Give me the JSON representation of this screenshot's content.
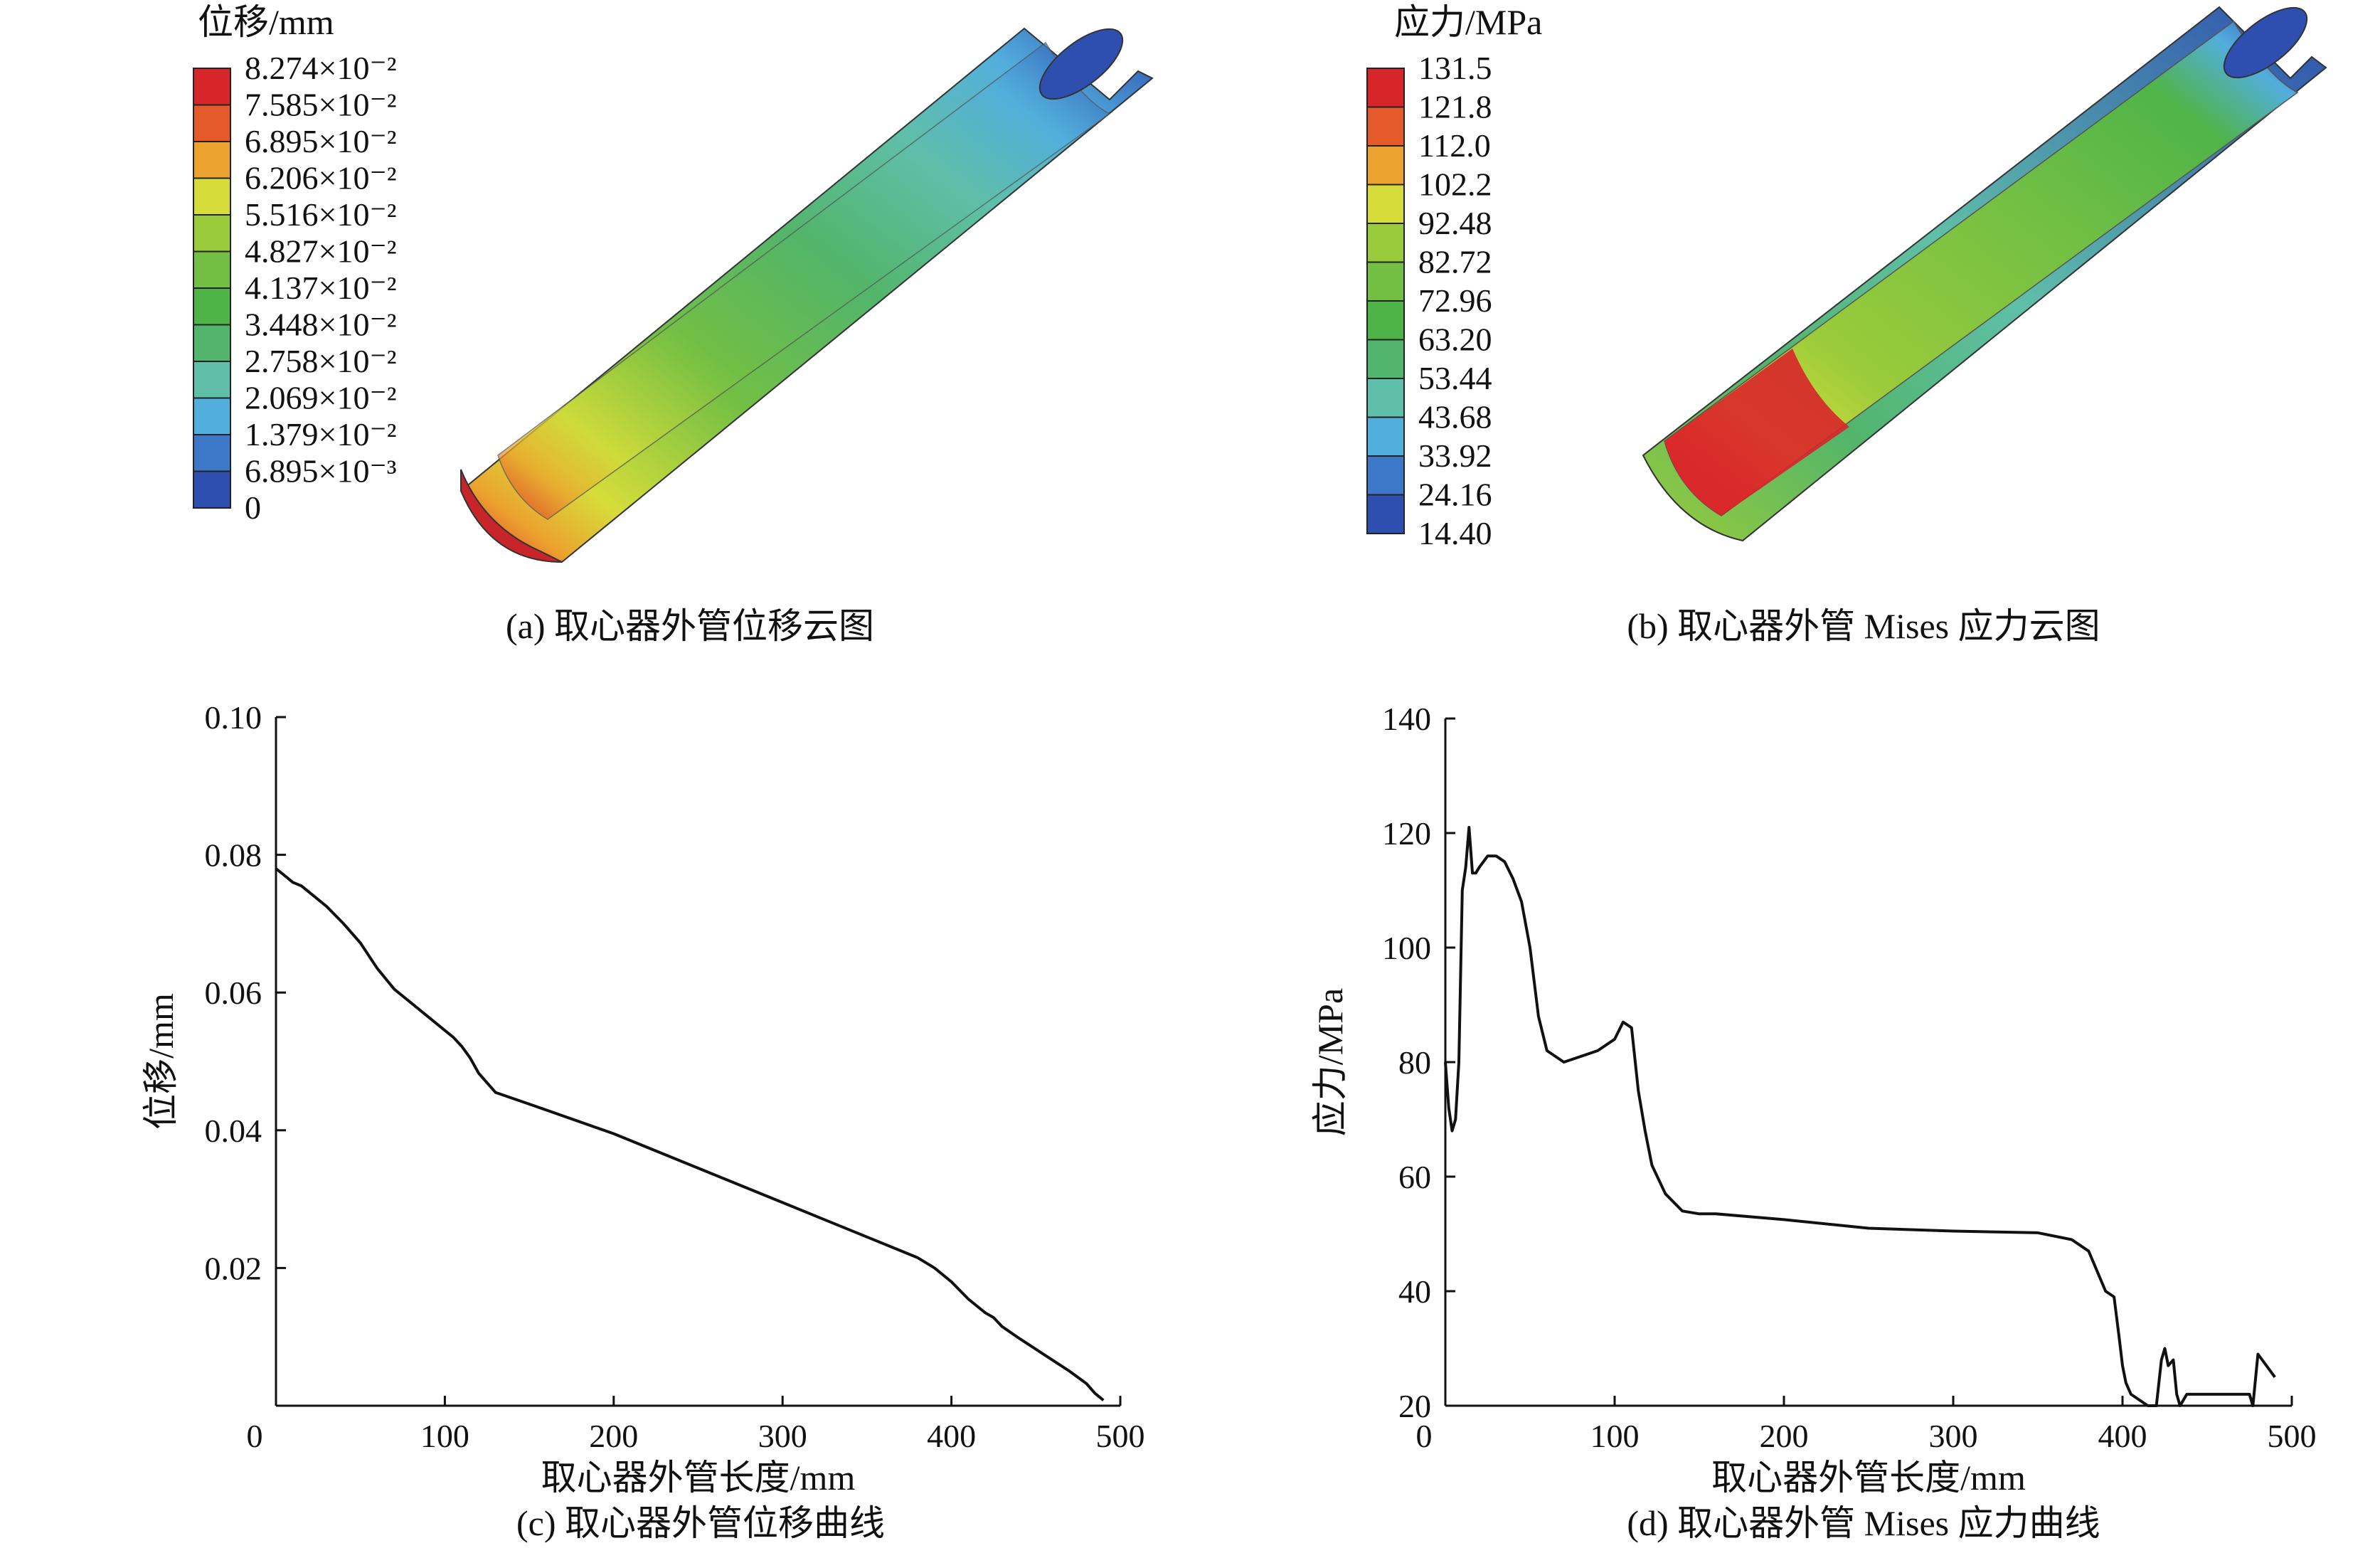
{
  "figure": {
    "panel_a": {
      "legend_title": "位移/mm",
      "legend_labels": [
        "8.274×10⁻²",
        "7.585×10⁻²",
        "6.895×10⁻²",
        "6.206×10⁻²",
        "5.516×10⁻²",
        "4.827×10⁻²",
        "4.137×10⁻²",
        "3.448×10⁻²",
        "2.758×10⁻²",
        "2.069×10⁻²",
        "1.379×10⁻²",
        "6.895×10⁻³",
        "0"
      ],
      "legend_colors": [
        "#d8252a",
        "#e55a2b",
        "#eca22e",
        "#d6dd3a",
        "#9acb3a",
        "#72bf44",
        "#4fb448",
        "#52b56b",
        "#5fbfa9",
        "#52aedd",
        "#3d78c8",
        "#2e4fb0"
      ],
      "caption": "(a) 取心器外管位移云图"
    },
    "panel_b": {
      "legend_title": "应力/MPa",
      "legend_labels": [
        "131.5",
        "121.8",
        "112.0",
        "102.2",
        "92.48",
        "82.72",
        "72.96",
        "63.20",
        "53.44",
        "43.68",
        "33.92",
        "24.16",
        "14.40"
      ],
      "legend_colors": [
        "#d8252a",
        "#e55a2b",
        "#eca22e",
        "#d6dd3a",
        "#9acb3a",
        "#72bf44",
        "#4fb448",
        "#52b56b",
        "#5fbfa9",
        "#52aedd",
        "#3d78c8",
        "#2e4fb0"
      ],
      "caption": "(b) 取心器外管 Mises 应力云图"
    },
    "panel_c": {
      "caption": "(c) 取心器外管位移曲线",
      "chart_data": {
        "type": "line",
        "xlabel": "取心器外管长度/mm",
        "ylabel": "位移/mm",
        "xlim": [
          0,
          500
        ],
        "ylim": [
          0,
          0.1
        ],
        "xticks": [
          "0",
          "100",
          "200",
          "300",
          "400",
          "500"
        ],
        "yticks": [
          "0.02",
          "0.04",
          "0.06",
          "0.08",
          "0.10"
        ],
        "x": [
          0,
          5,
          10,
          15,
          20,
          30,
          40,
          50,
          60,
          70,
          80,
          90,
          100,
          105,
          110,
          115,
          120,
          130,
          150,
          200,
          250,
          300,
          350,
          380,
          390,
          400,
          410,
          420,
          425,
          430,
          440,
          450,
          460,
          470,
          480,
          485,
          490
        ],
        "y": [
          0.078,
          0.077,
          0.076,
          0.0755,
          0.0745,
          0.0725,
          0.07,
          0.0672,
          0.0635,
          0.0605,
          0.0585,
          0.0565,
          0.0545,
          0.0535,
          0.0522,
          0.0505,
          0.0483,
          0.0455,
          0.0438,
          0.0395,
          0.0345,
          0.0295,
          0.0245,
          0.0215,
          0.02,
          0.018,
          0.0155,
          0.0135,
          0.0128,
          0.0115,
          0.0098,
          0.0082,
          0.0066,
          0.005,
          0.0032,
          0.0018,
          0.0008
        ]
      }
    },
    "panel_d": {
      "caption": "(d) 取心器外管 Mises 应力曲线",
      "chart_data": {
        "type": "line",
        "xlabel": "取心器外管长度/mm",
        "ylabel": "应力/MPa",
        "xlim": [
          0,
          500
        ],
        "ylim": [
          20,
          140
        ],
        "xticks": [
          "0",
          "100",
          "200",
          "300",
          "400",
          "500"
        ],
        "yticks": [
          "20",
          "40",
          "60",
          "80",
          "100",
          "120",
          "140"
        ],
        "x": [
          0,
          2,
          4,
          6,
          8,
          10,
          12,
          14,
          16,
          18,
          20,
          25,
          30,
          35,
          40,
          45,
          50,
          55,
          60,
          70,
          80,
          90,
          100,
          105,
          110,
          114,
          118,
          122,
          130,
          140,
          150,
          160,
          200,
          250,
          300,
          350,
          370,
          380,
          390,
          395,
          398,
          400,
          402,
          405,
          410,
          415,
          420,
          423,
          425,
          427,
          430,
          432,
          434,
          438,
          440,
          460,
          475,
          477,
          480,
          490
        ],
        "y": [
          80,
          72,
          68,
          70,
          80,
          110,
          114,
          121,
          113,
          113,
          114,
          116,
          116,
          115,
          112,
          108,
          100,
          88,
          82,
          80,
          81,
          82,
          84,
          87,
          86,
          75,
          68,
          62,
          57,
          54,
          53.5,
          53.5,
          52.5,
          51,
          50.5,
          50.2,
          49,
          47,
          40,
          39,
          32,
          27,
          24,
          22,
          21,
          20,
          20,
          28,
          30,
          27,
          28,
          22,
          20,
          22,
          22,
          22,
          22,
          20,
          29,
          25
        ]
      }
    }
  }
}
